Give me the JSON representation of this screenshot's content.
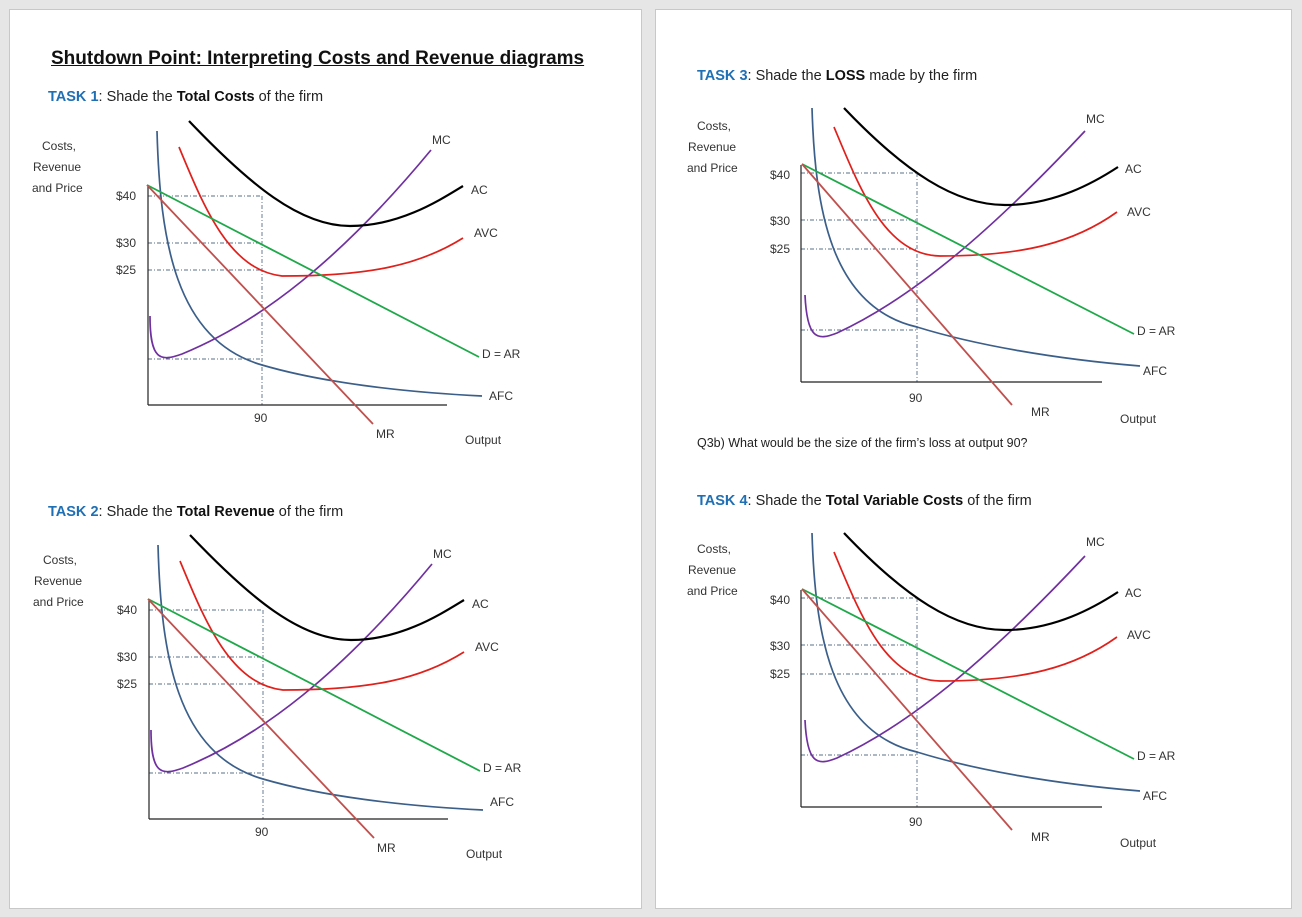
{
  "title": "Shutdown Point: Interpreting Costs and Revenue diagrams",
  "tasks": [
    {
      "label": "TASK",
      "num": "1",
      "pre": ": Shade the ",
      "bold": "Total Costs",
      "post": " of the firm"
    },
    {
      "label": "TASK",
      "num": "2",
      "pre": ": Shade the ",
      "bold": "Total Revenue",
      "post": " of the firm"
    },
    {
      "label": "TASK",
      "num": "3",
      "pre": ": Shade the ",
      "bold": "LOSS",
      "post": " made by the firm"
    },
    {
      "label": "TASK",
      "num": "4",
      "pre": ": Shade the ",
      "bold": "Total Variable Costs",
      "post": " of the firm"
    }
  ],
  "question": "Q3b) What would be the size of the firm’s loss at output 90?",
  "diagram": {
    "y_axis_label": [
      "Costs,",
      "Revenue",
      "and Price"
    ],
    "x_axis_label": "Output",
    "price_ticks": [
      "$40",
      "$30",
      "$25"
    ],
    "output_tick": "90",
    "curves": {
      "mc": "MC",
      "ac": "AC",
      "avc": "AVC",
      "ar": "D = AR",
      "afc": "AFC",
      "mr": "MR"
    }
  },
  "colors": {
    "task_blue": "#1f6fb5",
    "ac": "#000000",
    "avc": "#e0201b",
    "mc": "#7030a0",
    "ar": "#1fa84a",
    "afc": "#3b5f8a",
    "mr": "#c0504d",
    "guide": "#5a6f8a"
  }
}
